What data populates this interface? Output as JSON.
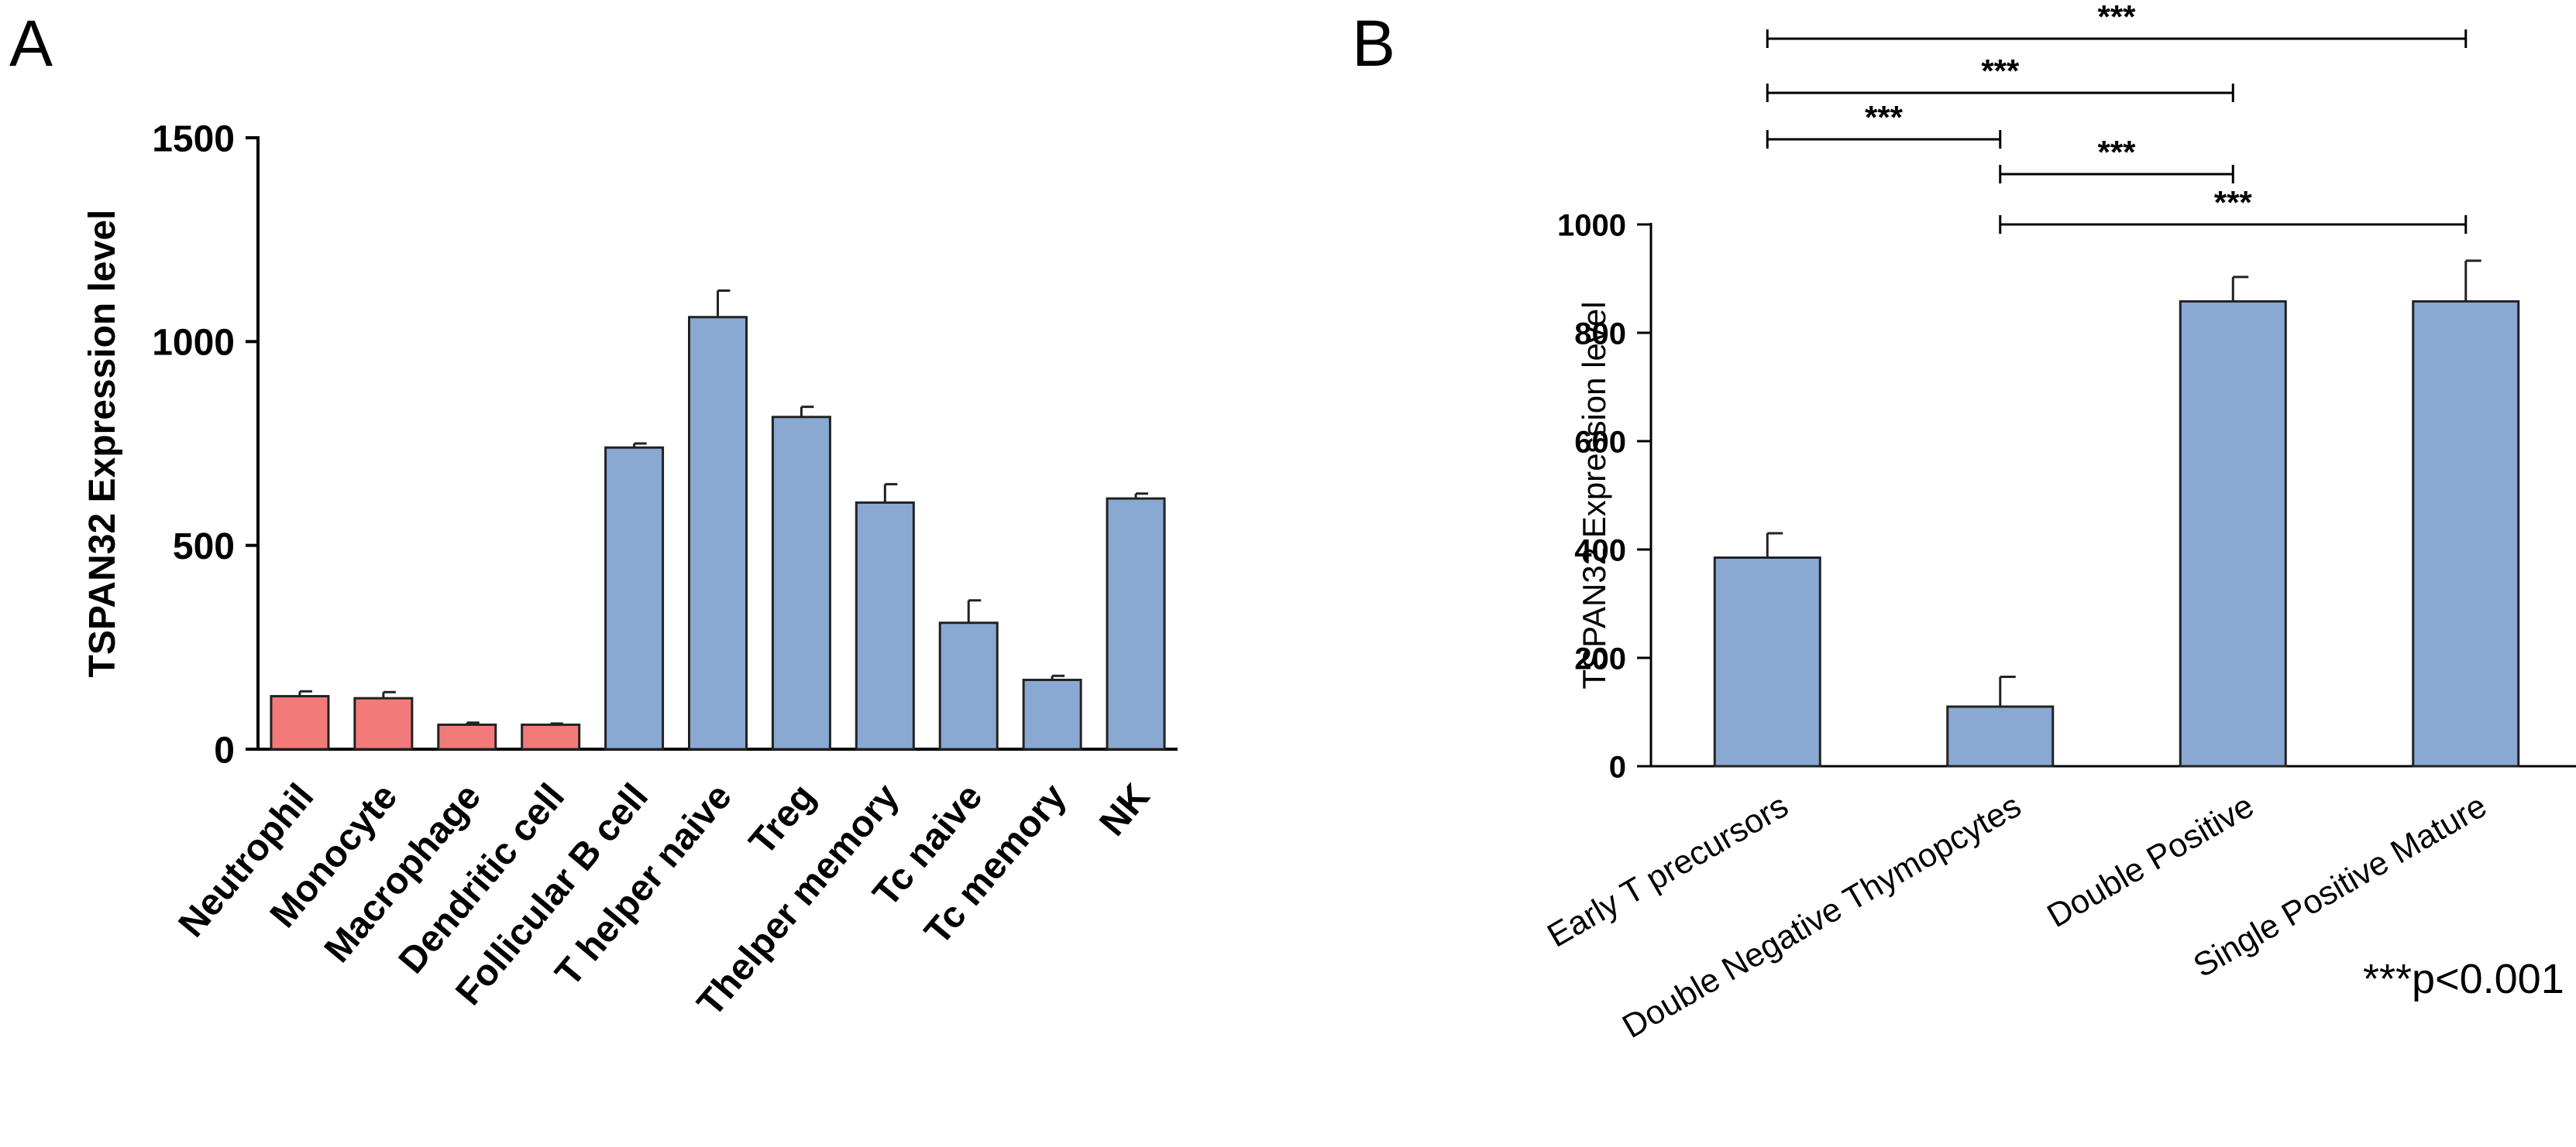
{
  "chart_data": [
    {
      "panel": "A",
      "type": "bar",
      "title": "",
      "xlabel": "",
      "ylabel": "TSPAN32 Expression level",
      "ylim": [
        0,
        1500
      ],
      "yticks": [
        0,
        500,
        1000,
        1500
      ],
      "categories": [
        "Neutrophil",
        "Monocyte",
        "Macrophage",
        "Dendritic cell",
        "Follicular B cell",
        "T helper naive",
        "Treg",
        "Thelper memory",
        "Tc naive",
        "Tc memory",
        "NK"
      ],
      "values": [
        130,
        125,
        60,
        60,
        740,
        1060,
        815,
        605,
        310,
        170,
        615
      ],
      "errors": [
        12,
        15,
        5,
        3,
        10,
        65,
        25,
        45,
        55,
        10,
        12
      ],
      "bar_colors": [
        "#f27b79",
        "#f27b79",
        "#f27b79",
        "#f27b79",
        "#89a9d3",
        "#89a9d3",
        "#89a9d3",
        "#89a9d3",
        "#89a9d3",
        "#89a9d3",
        "#89a9d3"
      ]
    },
    {
      "panel": "B",
      "type": "bar",
      "title": "",
      "xlabel": "",
      "ylabel": "TSPAN32 Expression level",
      "ylim": [
        0,
        1000
      ],
      "yticks": [
        0,
        200,
        400,
        600,
        800,
        1000
      ],
      "categories": [
        "Early T precursors",
        "Double Negative Thymopcytes",
        "Double Positive",
        "Single Positive Mature"
      ],
      "values": [
        385,
        110,
        858,
        858
      ],
      "errors": [
        45,
        55,
        45,
        75
      ],
      "bar_colors": [
        "#89a9d3",
        "#89a9d3",
        "#89a9d3",
        "#89a9d3"
      ],
      "significance": [
        {
          "from": 0,
          "to": 3,
          "label": "***"
        },
        {
          "from": 0,
          "to": 2,
          "label": "***"
        },
        {
          "from": 0,
          "to": 1,
          "label": "***"
        },
        {
          "from": 1,
          "to": 2,
          "label": "***"
        },
        {
          "from": 1,
          "to": 3,
          "label": "***"
        }
      ],
      "note": "***p<0.001"
    }
  ],
  "panels": {
    "a_label": "A",
    "b_label": "B"
  }
}
